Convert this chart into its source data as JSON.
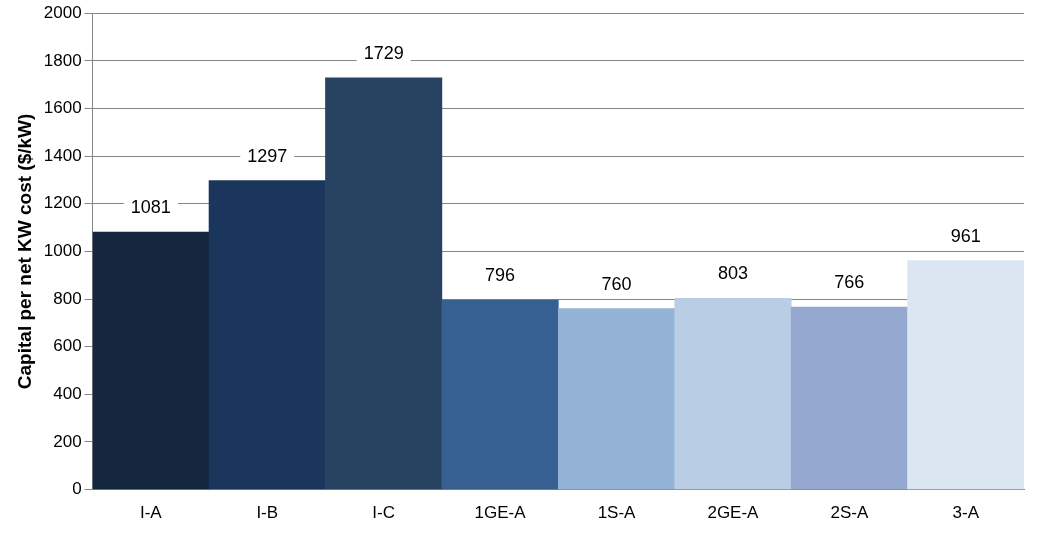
{
  "chart_data": {
    "type": "bar",
    "ylabel": "Capital per net KW cost ($/kW)",
    "categories": [
      "I-A",
      "I-B",
      "I-C",
      "1GE-A",
      "1S-A",
      "2GE-A",
      "2S-A",
      "3-A"
    ],
    "values": [
      1081,
      1297,
      1729,
      796,
      760,
      803,
      766,
      961
    ],
    "colors": [
      "#15273f",
      "#1b365d",
      "#284262",
      "#376092",
      "#95b3d7",
      "#b9cde5",
      "#95a9d0",
      "#dce6f2"
    ],
    "ylim": [
      0,
      2000
    ],
    "yticks": [
      0,
      200,
      400,
      600,
      800,
      1000,
      1200,
      1400,
      1600,
      1800,
      2000
    ],
    "grid": "y",
    "data_labels": true,
    "legend": false
  }
}
